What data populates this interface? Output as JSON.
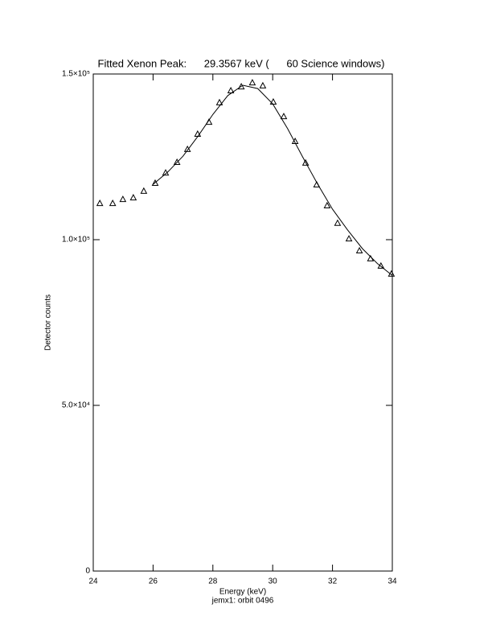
{
  "chart_data": {
    "type": "scatter",
    "title": "Fitted Xenon Peak:      29.3567 keV (      60 Science windows)",
    "x_label": "Energy (keV)",
    "y_label": "Detector counts",
    "subtitle": "jemx1: orbit 0496",
    "xlim": [
      24,
      34
    ],
    "xticks": [
      24,
      26,
      28,
      30,
      32,
      34
    ],
    "ylim": [
      0,
      150000
    ],
    "yticks": [
      0,
      {
        "value": 50000,
        "label": "5.0×10⁴"
      },
      {
        "value": 100000,
        "label": "1.0×10⁵"
      },
      {
        "value": 150000,
        "label": "1.5×10⁵"
      }
    ],
    "color": "#000000",
    "series": [
      {
        "marker": "triangle",
        "x": [
          24.22,
          24.65,
          24.99,
          25.34,
          25.69,
          26.07,
          26.42,
          26.8,
          27.15,
          27.49,
          27.87,
          28.22,
          28.6,
          28.95,
          29.32,
          29.67,
          30.02,
          30.37,
          30.75,
          31.1,
          31.47,
          31.82,
          32.17,
          32.55,
          32.9,
          33.27,
          33.62,
          33.97
        ],
        "values": [
          110900,
          110900,
          112100,
          112600,
          114600,
          117000,
          120100,
          123300,
          127200,
          131800,
          135400,
          141300,
          144900,
          146100,
          147300,
          146400,
          141500,
          137100,
          129600,
          123100,
          116500,
          110200,
          104900,
          100200,
          96600,
          94200,
          92000,
          89600
        ]
      },
      {
        "marker": "line",
        "x": [
          26,
          26.5,
          27,
          27.5,
          28,
          28.5,
          29,
          29.5,
          30,
          30.5,
          31,
          31.5,
          32,
          32.5,
          33,
          33.5,
          34
        ],
        "values": [
          116700,
          120500,
          125200,
          131200,
          137800,
          143500,
          146600,
          145600,
          141000,
          133500,
          125000,
          116800,
          109200,
          103000,
          97300,
          92800,
          89200
        ]
      }
    ]
  }
}
